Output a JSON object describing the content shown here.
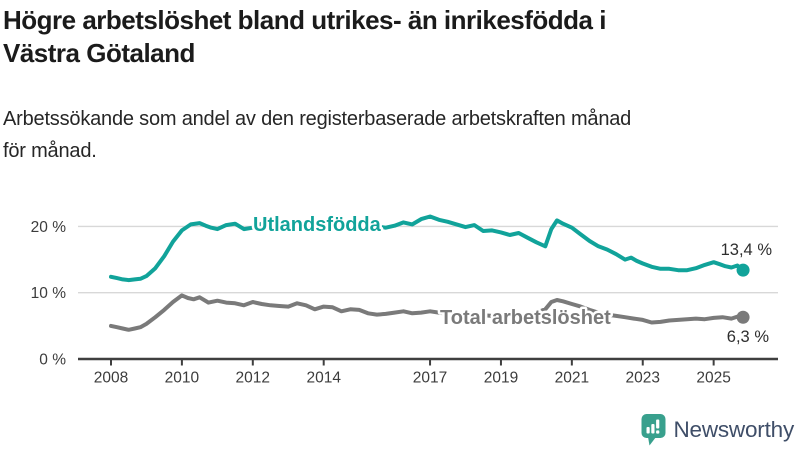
{
  "header": {
    "title_lines": [
      "Högre arbetslöshet bland utrikes- än inrikesfödda i",
      "Västra Götaland"
    ],
    "subtitle_lines": [
      "Arbetssökande som andel av den registerbaserade arbetskraften månad",
      "för månad."
    ]
  },
  "footer": {
    "brand": "Newsworthy",
    "logo_icon": "bar-chart-speech-bubble-icon"
  },
  "colors": {
    "series_foreign_born": "#11a39a",
    "series_total": "#7a7a7a",
    "axis": "#3f3f3f",
    "gridline": "#d8d8d8",
    "logo_teal": "#38a08d",
    "brand_text": "#3f4e68"
  },
  "chart_data": {
    "type": "line",
    "title": "Högre arbetslöshet bland utrikes- än inrikesfödda i Västra Götaland",
    "subtitle": "Arbetssökande som andel av den registerbaserade arbetskraften månad för månad.",
    "xlabel": "",
    "ylabel": "",
    "grid": true,
    "legend_position": "inline-labels",
    "x_axis": {
      "ticks": [
        2008,
        2010,
        2012,
        2014,
        2017,
        2019,
        2021,
        2023,
        2025
      ],
      "range_years": [
        2007.7,
        2026.2
      ]
    },
    "y_axis": {
      "ticks": [
        {
          "value": 0,
          "label": "0 %"
        },
        {
          "value": 10,
          "label": "10 %"
        },
        {
          "value": 20,
          "label": "20 %"
        }
      ],
      "range": [
        0,
        23
      ]
    },
    "series": [
      {
        "name": "Utlandsfödda",
        "color": "#11a39a",
        "end_value": 13.4,
        "end_label": "13,4 %",
        "points": [
          [
            2008.0,
            12.4
          ],
          [
            2008.17,
            12.2
          ],
          [
            2008.33,
            12.0
          ],
          [
            2008.5,
            11.9
          ],
          [
            2008.67,
            12.0
          ],
          [
            2008.83,
            12.1
          ],
          [
            2009.0,
            12.5
          ],
          [
            2009.25,
            13.7
          ],
          [
            2009.5,
            15.5
          ],
          [
            2009.75,
            17.7
          ],
          [
            2010.0,
            19.4
          ],
          [
            2010.25,
            20.3
          ],
          [
            2010.5,
            20.5
          ],
          [
            2010.67,
            20.1
          ],
          [
            2010.83,
            19.8
          ],
          [
            2011.0,
            19.6
          ],
          [
            2011.25,
            20.2
          ],
          [
            2011.5,
            20.4
          ],
          [
            2011.75,
            19.6
          ],
          [
            2012.0,
            19.8
          ],
          [
            2012.25,
            20.4
          ],
          [
            2012.5,
            20.1
          ],
          [
            2012.75,
            19.7
          ],
          [
            2013.0,
            19.9
          ],
          [
            2013.25,
            20.5
          ],
          [
            2013.5,
            20.2
          ],
          [
            2013.75,
            19.8
          ],
          [
            2014.0,
            20.0
          ],
          [
            2014.25,
            20.4
          ],
          [
            2014.5,
            20.1
          ],
          [
            2014.75,
            19.8
          ],
          [
            2015.0,
            20.0
          ],
          [
            2015.25,
            20.3
          ],
          [
            2015.5,
            20.0
          ],
          [
            2015.75,
            19.8
          ],
          [
            2016.0,
            20.1
          ],
          [
            2016.25,
            20.6
          ],
          [
            2016.5,
            20.3
          ],
          [
            2016.75,
            21.1
          ],
          [
            2017.0,
            21.5
          ],
          [
            2017.25,
            21.0
          ],
          [
            2017.5,
            20.7
          ],
          [
            2017.75,
            20.3
          ],
          [
            2018.0,
            19.9
          ],
          [
            2018.25,
            20.2
          ],
          [
            2018.5,
            19.3
          ],
          [
            2018.75,
            19.4
          ],
          [
            2019.0,
            19.1
          ],
          [
            2019.25,
            18.7
          ],
          [
            2019.5,
            19.0
          ],
          [
            2019.75,
            18.3
          ],
          [
            2020.0,
            17.6
          ],
          [
            2020.25,
            17.0
          ],
          [
            2020.42,
            19.6
          ],
          [
            2020.58,
            20.9
          ],
          [
            2020.75,
            20.4
          ],
          [
            2021.0,
            19.8
          ],
          [
            2021.25,
            18.8
          ],
          [
            2021.5,
            17.8
          ],
          [
            2021.75,
            17.0
          ],
          [
            2022.0,
            16.5
          ],
          [
            2022.25,
            15.8
          ],
          [
            2022.5,
            15.0
          ],
          [
            2022.67,
            15.3
          ],
          [
            2022.83,
            14.8
          ],
          [
            2023.0,
            14.4
          ],
          [
            2023.25,
            13.9
          ],
          [
            2023.5,
            13.6
          ],
          [
            2023.75,
            13.6
          ],
          [
            2024.0,
            13.4
          ],
          [
            2024.25,
            13.4
          ],
          [
            2024.5,
            13.7
          ],
          [
            2024.75,
            14.2
          ],
          [
            2025.0,
            14.6
          ],
          [
            2025.17,
            14.3
          ],
          [
            2025.33,
            14.0
          ],
          [
            2025.5,
            13.8
          ],
          [
            2025.67,
            14.1
          ],
          [
            2025.83,
            13.4
          ]
        ]
      },
      {
        "name": "Total arbetslöshet",
        "color": "#7a7a7a",
        "end_value": 6.3,
        "end_label": "6,3 %",
        "points": [
          [
            2008.0,
            5.0
          ],
          [
            2008.17,
            4.8
          ],
          [
            2008.33,
            4.6
          ],
          [
            2008.5,
            4.4
          ],
          [
            2008.67,
            4.6
          ],
          [
            2008.83,
            4.8
          ],
          [
            2009.0,
            5.3
          ],
          [
            2009.25,
            6.3
          ],
          [
            2009.5,
            7.4
          ],
          [
            2009.75,
            8.6
          ],
          [
            2010.0,
            9.6
          ],
          [
            2010.17,
            9.2
          ],
          [
            2010.33,
            9.0
          ],
          [
            2010.5,
            9.3
          ],
          [
            2010.75,
            8.5
          ],
          [
            2011.0,
            8.8
          ],
          [
            2011.25,
            8.5
          ],
          [
            2011.5,
            8.4
          ],
          [
            2011.75,
            8.1
          ],
          [
            2012.0,
            8.6
          ],
          [
            2012.25,
            8.3
          ],
          [
            2012.5,
            8.1
          ],
          [
            2012.75,
            8.0
          ],
          [
            2013.0,
            7.9
          ],
          [
            2013.25,
            8.4
          ],
          [
            2013.5,
            8.1
          ],
          [
            2013.75,
            7.5
          ],
          [
            2014.0,
            7.9
          ],
          [
            2014.25,
            7.8
          ],
          [
            2014.5,
            7.2
          ],
          [
            2014.75,
            7.5
          ],
          [
            2015.0,
            7.4
          ],
          [
            2015.25,
            6.9
          ],
          [
            2015.5,
            6.7
          ],
          [
            2015.75,
            6.8
          ],
          [
            2016.0,
            7.0
          ],
          [
            2016.25,
            7.2
          ],
          [
            2016.5,
            6.9
          ],
          [
            2016.75,
            7.0
          ],
          [
            2017.0,
            7.2
          ],
          [
            2017.25,
            7.0
          ],
          [
            2017.5,
            6.8
          ],
          [
            2017.75,
            6.6
          ],
          [
            2018.0,
            6.8
          ],
          [
            2018.25,
            6.9
          ],
          [
            2018.5,
            6.6
          ],
          [
            2018.75,
            6.5
          ],
          [
            2019.0,
            6.6
          ],
          [
            2019.25,
            6.8
          ],
          [
            2019.5,
            6.6
          ],
          [
            2019.75,
            6.7
          ],
          [
            2020.0,
            7.0
          ],
          [
            2020.25,
            7.5
          ],
          [
            2020.42,
            8.6
          ],
          [
            2020.58,
            8.9
          ],
          [
            2020.75,
            8.7
          ],
          [
            2021.0,
            8.3
          ],
          [
            2021.25,
            7.9
          ],
          [
            2021.5,
            7.4
          ],
          [
            2021.75,
            7.0
          ],
          [
            2022.0,
            6.7
          ],
          [
            2022.25,
            6.5
          ],
          [
            2022.5,
            6.3
          ],
          [
            2022.75,
            6.1
          ],
          [
            2023.0,
            5.9
          ],
          [
            2023.25,
            5.5
          ],
          [
            2023.5,
            5.6
          ],
          [
            2023.75,
            5.8
          ],
          [
            2024.0,
            5.9
          ],
          [
            2024.25,
            6.0
          ],
          [
            2024.5,
            6.1
          ],
          [
            2024.75,
            6.0
          ],
          [
            2025.0,
            6.2
          ],
          [
            2025.25,
            6.3
          ],
          [
            2025.5,
            6.1
          ],
          [
            2025.67,
            6.4
          ],
          [
            2025.83,
            6.3
          ]
        ]
      }
    ]
  }
}
